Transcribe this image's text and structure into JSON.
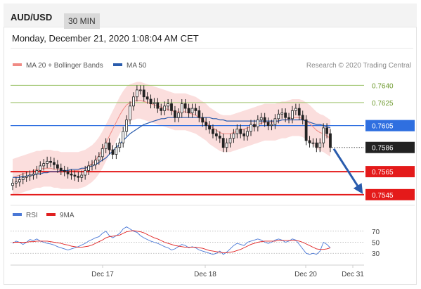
{
  "header": {
    "symbol": "AUD/USD",
    "timeframe": "30 MIN"
  },
  "timestamp": "Monday, December 21, 2020 1:08:04 AM CET",
  "legend": {
    "bollinger": {
      "label": "MA 20 + Bollinger Bands",
      "color": "#f08a84"
    },
    "ma50": {
      "label": "MA 50",
      "color": "#2a5cad"
    }
  },
  "credit": "Research © 2020 Trading Central",
  "rsi_legend": {
    "rsi": {
      "label": "RSI",
      "color": "#4a78d6"
    },
    "ma9": {
      "label": "9MA",
      "color": "#e02020"
    }
  },
  "chart_data": {
    "type": "candlestick",
    "price_axis": {
      "min": 0.754,
      "max": 0.765
    },
    "x_labels": [
      "Dec 17",
      "Dec 18",
      "Dec 20",
      "Dec 31"
    ],
    "levels": [
      {
        "value": 0.764,
        "label": "0.7640",
        "style": "target",
        "color": "#9cc26a"
      },
      {
        "value": 0.7625,
        "label": "0.7625",
        "style": "target",
        "color": "#9cc26a"
      },
      {
        "value": 0.7605,
        "label": "0.7605",
        "style": "pivot",
        "color": "#2f6fe0"
      },
      {
        "value": 0.7586,
        "label": "0.7586",
        "style": "last",
        "color": "#222222"
      },
      {
        "value": 0.7565,
        "label": "0.7565",
        "style": "support",
        "color": "#e41a1a"
      },
      {
        "value": 0.7545,
        "label": "0.7545",
        "style": "support",
        "color": "#e41a1a"
      }
    ],
    "scenario_arrow": {
      "from": 0.7586,
      "to": 0.7545,
      "color": "#2a5cad"
    },
    "close_series": [
      0.7555,
      0.7556,
      0.7558,
      0.756,
      0.7561,
      0.7562,
      0.7563,
      0.7566,
      0.757,
      0.7572,
      0.7574,
      0.7573,
      0.7571,
      0.7568,
      0.7566,
      0.7565,
      0.7563,
      0.7562,
      0.7561,
      0.756,
      0.7562,
      0.7566,
      0.757,
      0.7571,
      0.7575,
      0.7578,
      0.7585,
      0.759,
      0.7584,
      0.758,
      0.7586,
      0.759,
      0.76,
      0.761,
      0.7622,
      0.763,
      0.7636,
      0.7636,
      0.763,
      0.7628,
      0.7624,
      0.7625,
      0.762,
      0.7618,
      0.7622,
      0.7624,
      0.7618,
      0.7612,
      0.7616,
      0.7624,
      0.762,
      0.7616,
      0.762,
      0.7618,
      0.7612,
      0.7608,
      0.7605,
      0.7602,
      0.7598,
      0.7596,
      0.7594,
      0.7586,
      0.759,
      0.7594,
      0.7598,
      0.7602,
      0.7598,
      0.7596,
      0.76,
      0.7606,
      0.7604,
      0.761,
      0.7612,
      0.7608,
      0.7605,
      0.7606,
      0.7611,
      0.7615,
      0.7616,
      0.7612,
      0.7611,
      0.7618,
      0.762,
      0.7614,
      0.761,
      0.7592,
      0.759,
      0.759,
      0.7586,
      0.759,
      0.7603,
      0.7598,
      0.7586
    ],
    "ma20_series": [
      0.756,
      0.7561,
      0.7562,
      0.7563,
      0.7564,
      0.7565,
      0.7566,
      0.7567,
      0.7567,
      0.7568,
      0.7568,
      0.7568,
      0.7567,
      0.7567,
      0.7566,
      0.7566,
      0.7566,
      0.7566,
      0.7566,
      0.7566,
      0.7567,
      0.7568,
      0.757,
      0.7572,
      0.7575,
      0.7579,
      0.7584,
      0.759,
      0.7596,
      0.7602,
      0.7608,
      0.7614,
      0.7619,
      0.7623,
      0.7625,
      0.7626,
      0.7627,
      0.7627,
      0.7626,
      0.7625,
      0.7624,
      0.7623,
      0.7622,
      0.7621,
      0.762,
      0.7619,
      0.7618,
      0.7617,
      0.7617,
      0.7617,
      0.7617,
      0.7616,
      0.7615,
      0.7614,
      0.7612,
      0.761,
      0.7608,
      0.7605,
      0.7603,
      0.7601,
      0.7599,
      0.7598,
      0.7598,
      0.7598,
      0.7599,
      0.76,
      0.7601,
      0.7602,
      0.7603,
      0.7604,
      0.7605,
      0.7606,
      0.7607,
      0.7608,
      0.7608,
      0.7608,
      0.7608,
      0.7609,
      0.761,
      0.761,
      0.7611,
      0.7612,
      0.7612,
      0.7612,
      0.7611,
      0.7609,
      0.7607,
      0.7604,
      0.7601,
      0.7599,
      0.7598,
      0.7596,
      0.7594
    ],
    "ma50_series": [
      0.756,
      0.756,
      0.756,
      0.7561,
      0.7561,
      0.7562,
      0.7562,
      0.7563,
      0.7563,
      0.7564,
      0.7564,
      0.7565,
      0.7565,
      0.7565,
      0.7566,
      0.7566,
      0.7566,
      0.7567,
      0.7567,
      0.7567,
      0.7568,
      0.7568,
      0.7569,
      0.757,
      0.7571,
      0.7573,
      0.7575,
      0.7577,
      0.758,
      0.7583,
      0.7586,
      0.7589,
      0.7592,
      0.7595,
      0.7598,
      0.76,
      0.7602,
      0.7604,
      0.7606,
      0.7607,
      0.7608,
      0.7609,
      0.761,
      0.7611,
      0.7611,
      0.7612,
      0.7612,
      0.7612,
      0.7612,
      0.7612,
      0.7612,
      0.7612,
      0.7612,
      0.7612,
      0.7612,
      0.7612,
      0.7612,
      0.7612,
      0.7611,
      0.7611,
      0.761,
      0.761,
      0.7609,
      0.7609,
      0.7609,
      0.7609,
      0.7609,
      0.7609,
      0.7609,
      0.7609,
      0.7609,
      0.7609,
      0.7609,
      0.7609,
      0.7609,
      0.7609,
      0.7609,
      0.7609,
      0.761,
      0.761,
      0.761,
      0.761,
      0.761,
      0.761,
      0.761,
      0.7609,
      0.7608,
      0.7607,
      0.7606,
      0.7606,
      0.7605,
      0.7604,
      0.7603
    ],
    "rsi": {
      "levels": [
        70,
        50,
        30
      ],
      "rsi_series": [
        48,
        52,
        50,
        46,
        50,
        55,
        53,
        56,
        52,
        50,
        48,
        47,
        45,
        42,
        40,
        38,
        36,
        38,
        40,
        42,
        45,
        48,
        52,
        55,
        58,
        60,
        66,
        70,
        62,
        58,
        62,
        66,
        74,
        78,
        74,
        70,
        68,
        62,
        58,
        55,
        52,
        50,
        48,
        45,
        42,
        40,
        36,
        38,
        42,
        46,
        44,
        40,
        42,
        40,
        36,
        34,
        32,
        30,
        28,
        30,
        34,
        28,
        32,
        38,
        44,
        48,
        46,
        44,
        50,
        52,
        54,
        56,
        54,
        50,
        48,
        50,
        54,
        56,
        54,
        50,
        52,
        56,
        54,
        46,
        38,
        30,
        28,
        30,
        28,
        34,
        50,
        46,
        40
      ],
      "ma9_series": [
        50,
        50,
        50,
        50,
        50,
        51,
        51,
        52,
        52,
        52,
        52,
        51,
        50,
        49,
        48,
        46,
        45,
        43,
        42,
        41,
        41,
        42,
        43,
        45,
        48,
        51,
        54,
        58,
        60,
        61,
        62,
        63,
        66,
        69,
        70,
        71,
        70,
        69,
        67,
        64,
        61,
        58,
        56,
        53,
        50,
        48,
        46,
        44,
        43,
        42,
        41,
        41,
        41,
        41,
        40,
        39,
        37,
        35,
        34,
        33,
        32,
        31,
        31,
        32,
        33,
        35,
        37,
        40,
        43,
        46,
        48,
        50,
        51,
        52,
        52,
        52,
        52,
        53,
        53,
        53,
        53,
        53,
        53,
        52,
        50,
        47,
        44,
        41,
        38,
        37,
        37,
        38,
        40
      ]
    }
  }
}
